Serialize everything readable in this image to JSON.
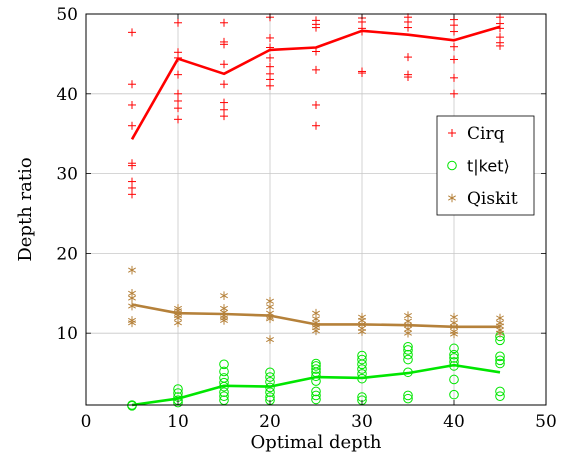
{
  "chart_data": {
    "type": "scatter",
    "title": "",
    "xlabel": "Optimal depth",
    "ylabel": "Depth ratio",
    "xlim": [
      0,
      50
    ],
    "ylim": [
      1,
      50
    ],
    "xticks": [
      0,
      10,
      20,
      30,
      40,
      50
    ],
    "yticks": [
      10,
      20,
      30,
      40,
      50
    ],
    "grid": true,
    "legend_position": "right",
    "series": [
      {
        "name": "Cirq",
        "color": "#ff0000",
        "marker": "plus",
        "points": [
          [
            5,
            47.7
          ],
          [
            5,
            41.2
          ],
          [
            5,
            38.6
          ],
          [
            5,
            36.0
          ],
          [
            5,
            31.3
          ],
          [
            5,
            31.0
          ],
          [
            5,
            29.0
          ],
          [
            5,
            28.2
          ],
          [
            5,
            27.4
          ],
          [
            10,
            48.9
          ],
          [
            10,
            45.2
          ],
          [
            10,
            44.5
          ],
          [
            10,
            42.4
          ],
          [
            10,
            40.0
          ],
          [
            10,
            39.1
          ],
          [
            10,
            38.2
          ],
          [
            10,
            36.8
          ],
          [
            15,
            48.9
          ],
          [
            15,
            46.5
          ],
          [
            15,
            46.2
          ],
          [
            15,
            43.7
          ],
          [
            15,
            41.2
          ],
          [
            15,
            38.9
          ],
          [
            15,
            38.0
          ],
          [
            15,
            37.2
          ],
          [
            20,
            49.6
          ],
          [
            20,
            47.0
          ],
          [
            20,
            45.8
          ],
          [
            20,
            44.5
          ],
          [
            20,
            43.4
          ],
          [
            20,
            42.5
          ],
          [
            20,
            41.8
          ],
          [
            20,
            41.0
          ],
          [
            25,
            49.2
          ],
          [
            25,
            48.7
          ],
          [
            25,
            48.3
          ],
          [
            25,
            45.3
          ],
          [
            25,
            43.0
          ],
          [
            25,
            38.6
          ],
          [
            25,
            36.0
          ],
          [
            30,
            49.5
          ],
          [
            30,
            49.0
          ],
          [
            30,
            48.2
          ],
          [
            30,
            47.8
          ],
          [
            30,
            42.8
          ],
          [
            30,
            42.6
          ],
          [
            35,
            49.6
          ],
          [
            35,
            49.0
          ],
          [
            35,
            48.3
          ],
          [
            35,
            44.6
          ],
          [
            35,
            42.4
          ],
          [
            35,
            42.1
          ],
          [
            40,
            49.3
          ],
          [
            40,
            48.6
          ],
          [
            40,
            47.8
          ],
          [
            40,
            45.9
          ],
          [
            40,
            44.3
          ],
          [
            40,
            42.0
          ],
          [
            40,
            40.0
          ],
          [
            45,
            49.6
          ],
          [
            45,
            48.8
          ],
          [
            45,
            48.2
          ],
          [
            45,
            47.1
          ],
          [
            45,
            46.4
          ],
          [
            45,
            46.0
          ]
        ],
        "mean_line": [
          [
            5,
            34.3
          ],
          [
            10,
            44.4
          ],
          [
            15,
            42.5
          ],
          [
            20,
            45.5
          ],
          [
            25,
            45.8
          ],
          [
            30,
            47.9
          ],
          [
            35,
            47.4
          ],
          [
            40,
            46.7
          ],
          [
            45,
            48.4
          ]
        ]
      },
      {
        "name": "t|ket⟩",
        "color": "#00e600",
        "marker": "circle",
        "points": [
          [
            5,
            1.0
          ],
          [
            5,
            0.9
          ],
          [
            10,
            3.0
          ],
          [
            10,
            2.5
          ],
          [
            10,
            2.0
          ],
          [
            10,
            1.6
          ],
          [
            10,
            1.3
          ],
          [
            15,
            6.1
          ],
          [
            15,
            5.2
          ],
          [
            15,
            4.4
          ],
          [
            15,
            3.8
          ],
          [
            15,
            3.3
          ],
          [
            15,
            2.6
          ],
          [
            15,
            2.1
          ],
          [
            15,
            1.6
          ],
          [
            20,
            5.1
          ],
          [
            20,
            4.5
          ],
          [
            20,
            3.9
          ],
          [
            20,
            3.2
          ],
          [
            20,
            2.6
          ],
          [
            20,
            2.0
          ],
          [
            20,
            1.6
          ],
          [
            25,
            6.2
          ],
          [
            25,
            5.9
          ],
          [
            25,
            5.5
          ],
          [
            25,
            5.1
          ],
          [
            25,
            4.6
          ],
          [
            25,
            4.0
          ],
          [
            25,
            2.7
          ],
          [
            25,
            2.2
          ],
          [
            25,
            1.7
          ],
          [
            30,
            7.2
          ],
          [
            30,
            6.7
          ],
          [
            30,
            6.1
          ],
          [
            30,
            5.5
          ],
          [
            30,
            4.9
          ],
          [
            30,
            4.3
          ],
          [
            30,
            2.0
          ],
          [
            30,
            1.6
          ],
          [
            35,
            8.3
          ],
          [
            35,
            7.9
          ],
          [
            35,
            7.3
          ],
          [
            35,
            6.7
          ],
          [
            35,
            5.1
          ],
          [
            35,
            2.2
          ],
          [
            35,
            1.8
          ],
          [
            40,
            8.1
          ],
          [
            40,
            7.3
          ],
          [
            40,
            6.9
          ],
          [
            40,
            6.4
          ],
          [
            40,
            5.9
          ],
          [
            40,
            4.2
          ],
          [
            40,
            2.3
          ],
          [
            45,
            9.6
          ],
          [
            45,
            9.1
          ],
          [
            45,
            7.1
          ],
          [
            45,
            6.6
          ],
          [
            45,
            6.2
          ],
          [
            45,
            2.7
          ],
          [
            45,
            2.1
          ]
        ],
        "mean_line": [
          [
            5,
            1.0
          ],
          [
            10,
            1.8
          ],
          [
            15,
            3.4
          ],
          [
            20,
            3.3
          ],
          [
            25,
            4.5
          ],
          [
            30,
            4.4
          ],
          [
            35,
            5.0
          ],
          [
            40,
            6.0
          ],
          [
            45,
            5.1
          ]
        ]
      },
      {
        "name": "Qiskit",
        "color": "#b5813a",
        "marker": "star",
        "points": [
          [
            5,
            17.9
          ],
          [
            5,
            15.0
          ],
          [
            5,
            14.4
          ],
          [
            5,
            13.4
          ],
          [
            5,
            11.6
          ],
          [
            5,
            11.3
          ],
          [
            10,
            13.1
          ],
          [
            10,
            12.8
          ],
          [
            10,
            12.5
          ],
          [
            10,
            12.2
          ],
          [
            10,
            11.9
          ],
          [
            10,
            11.3
          ],
          [
            15,
            14.7
          ],
          [
            15,
            13.1
          ],
          [
            15,
            12.6
          ],
          [
            15,
            12.2
          ],
          [
            15,
            11.9
          ],
          [
            15,
            11.6
          ],
          [
            20,
            14.0
          ],
          [
            20,
            13.3
          ],
          [
            20,
            12.5
          ],
          [
            20,
            12.0
          ],
          [
            20,
            11.8
          ],
          [
            20,
            9.2
          ],
          [
            25,
            12.5
          ],
          [
            25,
            11.8
          ],
          [
            25,
            11.3
          ],
          [
            25,
            11.0
          ],
          [
            25,
            10.7
          ],
          [
            25,
            10.3
          ],
          [
            30,
            12.0
          ],
          [
            30,
            11.6
          ],
          [
            30,
            11.1
          ],
          [
            30,
            10.6
          ],
          [
            30,
            10.2
          ],
          [
            35,
            12.2
          ],
          [
            35,
            11.5
          ],
          [
            35,
            11.0
          ],
          [
            35,
            10.5
          ],
          [
            35,
            10.0
          ],
          [
            40,
            12.0
          ],
          [
            40,
            11.3
          ],
          [
            40,
            10.8
          ],
          [
            40,
            10.2
          ],
          [
            40,
            9.9
          ],
          [
            45,
            11.9
          ],
          [
            45,
            11.3
          ],
          [
            45,
            10.9
          ],
          [
            45,
            10.4
          ],
          [
            45,
            10.0
          ]
        ],
        "mean_line": [
          [
            5,
            13.6
          ],
          [
            10,
            12.5
          ],
          [
            15,
            12.4
          ],
          [
            20,
            12.2
          ],
          [
            25,
            11.1
          ],
          [
            30,
            11.1
          ],
          [
            35,
            11.0
          ],
          [
            40,
            10.8
          ],
          [
            45,
            10.8
          ]
        ]
      }
    ]
  }
}
